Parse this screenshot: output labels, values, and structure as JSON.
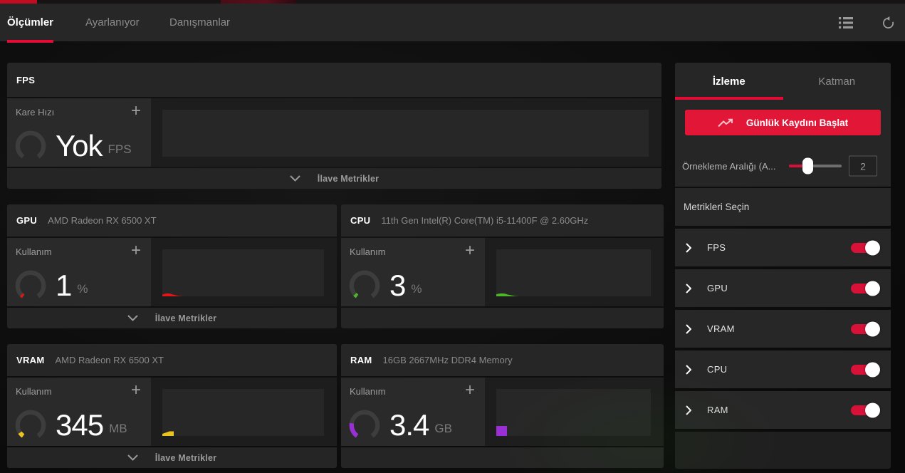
{
  "colors": {
    "accent_red": "#e40b36",
    "button_red": "#e21738",
    "toggle_red": "#d81138",
    "gpu_red": "#e21616",
    "cpu_green": "#4cb528",
    "vram_yellow": "#e9c41f",
    "ram_purple": "#9a2fd6"
  },
  "topbar": {
    "tabs": [
      {
        "label": "Ölçümler",
        "active": true
      },
      {
        "label": "Ayarlanıyor",
        "active": false
      },
      {
        "label": "Danışmanlar",
        "active": false
      }
    ],
    "icons": [
      "list-icon",
      "reset-icon"
    ]
  },
  "cards": [
    {
      "id": "fps",
      "section": "FPS",
      "desc": "",
      "metric": "Kare Hızı",
      "value": "Yok",
      "unit": "FPS",
      "expander": "İlave Metrikler",
      "accent": null,
      "gauge_fill": 0
    },
    {
      "id": "gpu",
      "section": "GPU",
      "desc": "AMD Radeon RX 6500 XT",
      "metric": "Kullanım",
      "value": "1",
      "unit": "%",
      "expander": "İlave Metrikler",
      "accent": "#e21616",
      "gauge_fill": 0.035
    },
    {
      "id": "cpu",
      "section": "CPU",
      "desc": "11th Gen Intel(R) Core(TM) i5-11400F @ 2.60GHz",
      "metric": "Kullanım",
      "value": "3",
      "unit": "%",
      "expander": "",
      "accent": "#4cb528",
      "gauge_fill": 0.045
    },
    {
      "id": "vram",
      "section": "VRAM",
      "desc": "AMD Radeon RX 6500 XT",
      "metric": "Kullanım",
      "value": "345",
      "unit": "MB",
      "expander": "İlave Metrikler",
      "accent": "#e9c41f",
      "gauge_fill": 0.07
    },
    {
      "id": "ram",
      "section": "RAM",
      "desc": "16GB 2667MHz DDR4 Memory",
      "metric": "Kullanım",
      "value": "3.4",
      "unit": "GB",
      "expander": "",
      "accent": "#9a2fd6",
      "gauge_fill": 0.22
    }
  ],
  "sidebar": {
    "tabs": [
      {
        "label": "İzleme",
        "active": true
      },
      {
        "label": "Katman",
        "active": false
      }
    ],
    "log_button_label": "Günlük Kaydını Başlat",
    "log_button_icon": "trending-up-icon",
    "sampling_label": "Örnekleme Aralığı (A...",
    "sampling_value": "2",
    "select_metrics_label": "Metrikleri Seçin",
    "metrics": [
      {
        "label": "FPS",
        "enabled": true
      },
      {
        "label": "GPU",
        "enabled": true
      },
      {
        "label": "VRAM",
        "enabled": true
      },
      {
        "label": "CPU",
        "enabled": true
      },
      {
        "label": "RAM",
        "enabled": true
      }
    ]
  }
}
